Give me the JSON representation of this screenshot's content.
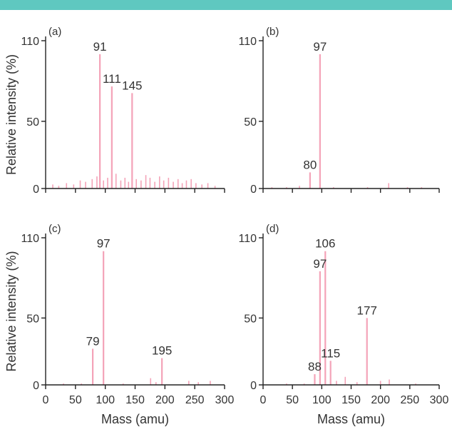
{
  "header_bar_color": "#5fc8c0",
  "chart_data": [
    {
      "panel": "(a)",
      "type": "bar",
      "xlabel": "",
      "ylabel": "Relative intensity (%)",
      "xlim": [
        0,
        300
      ],
      "ylim": [
        0,
        110
      ],
      "y_ticks": [
        "0",
        "50",
        "110"
      ],
      "x_ticks": [
        "0",
        "50",
        "100",
        "150",
        "200",
        "250",
        "300"
      ],
      "show_x_tick_labels": false,
      "peak_color": "#f4a3b8",
      "peaks": [
        {
          "x": 91,
          "y": 100,
          "label": "91"
        },
        {
          "x": 111,
          "y": 76,
          "label": "111"
        },
        {
          "x": 145,
          "y": 71,
          "label": "145"
        }
      ],
      "noise": [
        {
          "x": 12,
          "y": 3
        },
        {
          "x": 22,
          "y": 2
        },
        {
          "x": 35,
          "y": 4
        },
        {
          "x": 47,
          "y": 3
        },
        {
          "x": 58,
          "y": 6
        },
        {
          "x": 67,
          "y": 5
        },
        {
          "x": 78,
          "y": 7
        },
        {
          "x": 86,
          "y": 9
        },
        {
          "x": 97,
          "y": 6
        },
        {
          "x": 104,
          "y": 8
        },
        {
          "x": 118,
          "y": 11
        },
        {
          "x": 126,
          "y": 6
        },
        {
          "x": 133,
          "y": 8
        },
        {
          "x": 139,
          "y": 5
        },
        {
          "x": 152,
          "y": 7
        },
        {
          "x": 160,
          "y": 6
        },
        {
          "x": 168,
          "y": 10
        },
        {
          "x": 175,
          "y": 8
        },
        {
          "x": 183,
          "y": 5
        },
        {
          "x": 191,
          "y": 9
        },
        {
          "x": 198,
          "y": 6
        },
        {
          "x": 206,
          "y": 8
        },
        {
          "x": 214,
          "y": 5
        },
        {
          "x": 222,
          "y": 7
        },
        {
          "x": 229,
          "y": 4
        },
        {
          "x": 236,
          "y": 6
        },
        {
          "x": 244,
          "y": 7
        },
        {
          "x": 252,
          "y": 4
        },
        {
          "x": 262,
          "y": 3
        },
        {
          "x": 272,
          "y": 4
        },
        {
          "x": 284,
          "y": 2
        }
      ]
    },
    {
      "panel": "(b)",
      "type": "bar",
      "xlabel": "",
      "ylabel": "",
      "xlim": [
        0,
        300
      ],
      "ylim": [
        0,
        110
      ],
      "y_ticks": [
        "0",
        "50",
        "110"
      ],
      "x_ticks": [
        "0",
        "50",
        "100",
        "150",
        "200",
        "250",
        "300"
      ],
      "show_x_tick_labels": false,
      "peak_color": "#f4a3b8",
      "peaks": [
        {
          "x": 97,
          "y": 100,
          "label": "97"
        },
        {
          "x": 80,
          "y": 12,
          "label": "80"
        }
      ],
      "noise": [
        {
          "x": 15,
          "y": 1
        },
        {
          "x": 40,
          "y": 1
        },
        {
          "x": 62,
          "y": 2
        },
        {
          "x": 120,
          "y": 1
        },
        {
          "x": 178,
          "y": 1
        },
        {
          "x": 214,
          "y": 4
        },
        {
          "x": 246,
          "y": 1
        },
        {
          "x": 270,
          "y": 1
        }
      ]
    },
    {
      "panel": "(c)",
      "type": "bar",
      "xlabel": "Mass (amu)",
      "ylabel": "Relative intensity (%)",
      "xlim": [
        0,
        300
      ],
      "ylim": [
        0,
        110
      ],
      "y_ticks": [
        "0",
        "50",
        "110"
      ],
      "x_ticks": [
        "0",
        "50",
        "100",
        "150",
        "200",
        "250",
        "300"
      ],
      "show_x_tick_labels": true,
      "peak_color": "#f4a3b8",
      "peaks": [
        {
          "x": 97,
          "y": 100,
          "label": "97"
        },
        {
          "x": 79,
          "y": 27,
          "label": "79"
        },
        {
          "x": 195,
          "y": 20,
          "label": "195"
        }
      ],
      "noise": [
        {
          "x": 30,
          "y": 1
        },
        {
          "x": 60,
          "y": 1
        },
        {
          "x": 130,
          "y": 1
        },
        {
          "x": 176,
          "y": 5
        },
        {
          "x": 185,
          "y": 2
        },
        {
          "x": 240,
          "y": 3
        },
        {
          "x": 256,
          "y": 2
        },
        {
          "x": 276,
          "y": 3
        }
      ]
    },
    {
      "panel": "(d)",
      "type": "bar",
      "xlabel": "Mass (amu)",
      "ylabel": "",
      "xlim": [
        0,
        300
      ],
      "ylim": [
        0,
        110
      ],
      "y_ticks": [
        "0",
        "50",
        "110"
      ],
      "x_ticks": [
        "0",
        "50",
        "100",
        "150",
        "200",
        "250",
        "300"
      ],
      "show_x_tick_labels": true,
      "peak_color": "#f4a3b8",
      "peaks": [
        {
          "x": 106,
          "y": 100,
          "label": "106"
        },
        {
          "x": 97,
          "y": 85,
          "label": "97"
        },
        {
          "x": 177,
          "y": 50,
          "label": "177"
        },
        {
          "x": 115,
          "y": 18,
          "label": "115"
        },
        {
          "x": 88,
          "y": 8,
          "label": "88"
        }
      ],
      "noise": [
        {
          "x": 40,
          "y": 1
        },
        {
          "x": 70,
          "y": 1
        },
        {
          "x": 125,
          "y": 3
        },
        {
          "x": 140,
          "y": 6
        },
        {
          "x": 160,
          "y": 2
        },
        {
          "x": 200,
          "y": 3
        },
        {
          "x": 215,
          "y": 4
        },
        {
          "x": 260,
          "y": 1
        }
      ]
    }
  ]
}
